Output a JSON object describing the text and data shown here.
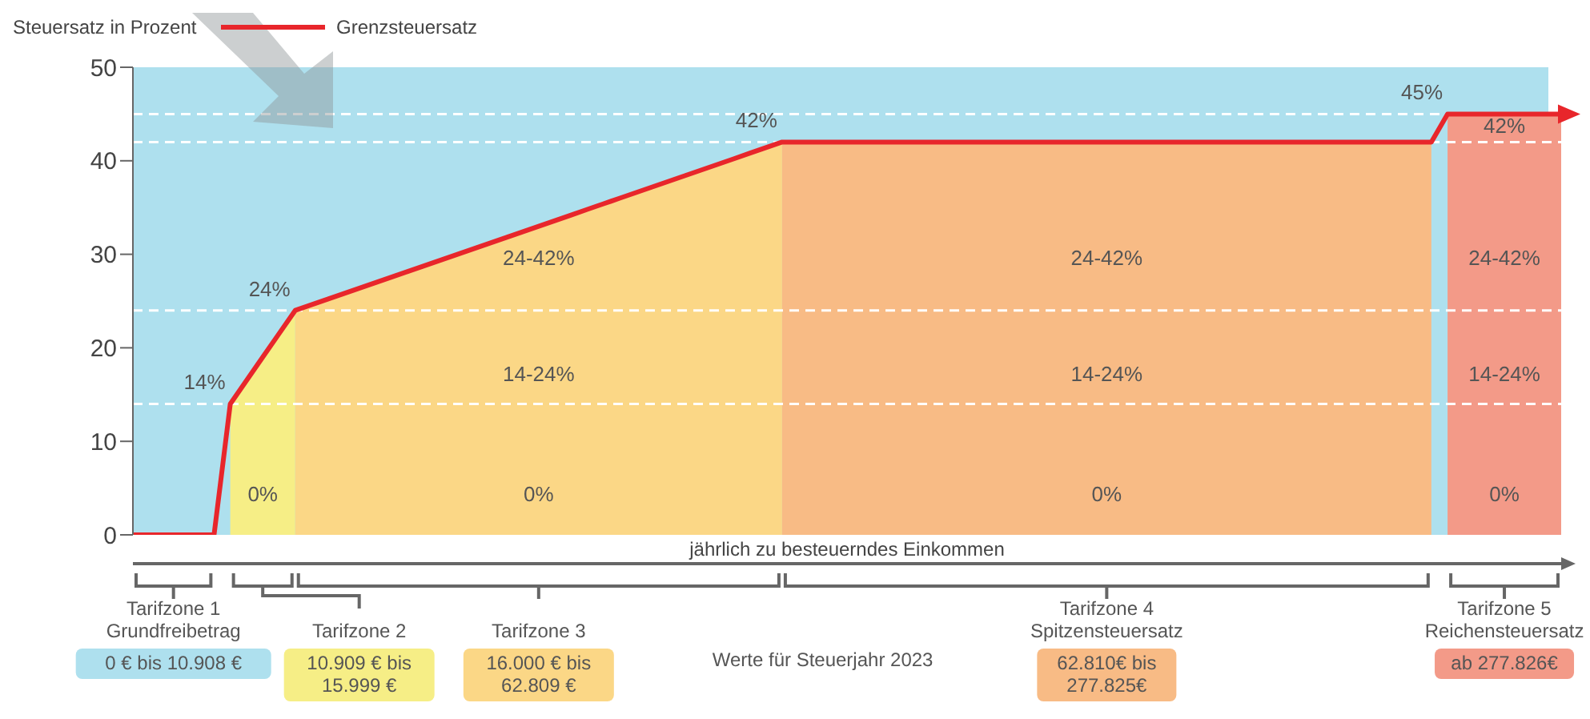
{
  "chart_data": {
    "type": "line",
    "ylabel": "Steuersatz in Prozent",
    "xlabel": "jährlich zu besteuerndes Einkommen",
    "legend": "top",
    "ylim": [
      0,
      50
    ],
    "yticks": [
      0,
      10,
      20,
      30,
      40,
      50
    ],
    "tick_labels": "y",
    "categories": [
      null,
      null,
      null,
      null,
      null,
      null,
      null,
      null,
      null,
      null,
      null,
      null,
      null,
      null,
      null,
      null,
      null,
      null,
      null,
      null,
      null,
      null,
      null,
      null,
      null,
      null,
      null,
      null,
      null,
      null,
      null,
      null,
      null,
      null,
      null,
      null,
      null,
      null,
      null,
      null,
      null,
      null,
      null,
      null,
      null,
      null,
      null,
      null,
      null,
      null,
      null,
      null,
      null,
      null,
      null,
      null,
      null,
      null,
      null,
      null,
      null,
      null,
      null,
      null,
      null,
      null,
      null,
      null,
      null,
      null,
      null,
      null,
      null,
      null,
      null,
      null,
      null,
      null,
      null,
      null,
      null,
      null,
      null,
      null,
      null,
      null,
      null,
      null,
      null
    ],
    "series": [
      {
        "type": "area",
        "color": "#f6ee86",
        "values": [
          null,
          null,
          null,
          null,
          null,
          null,
          14,
          16.5,
          19,
          21.5,
          24,
          null,
          null,
          null,
          null,
          null,
          null,
          null,
          null,
          null,
          null,
          null,
          null,
          null,
          null,
          null,
          null,
          null,
          null,
          null,
          null,
          null,
          null,
          null,
          null,
          null,
          null,
          null,
          null,
          null,
          null,
          null,
          null,
          null,
          null,
          null,
          null,
          null,
          null,
          null,
          null,
          null,
          null,
          null,
          null,
          null,
          null,
          null,
          null,
          null,
          null,
          null,
          null,
          null,
          null,
          null,
          null,
          null,
          null,
          null,
          null,
          null,
          null,
          null,
          null,
          null,
          null,
          null,
          null,
          null,
          null,
          null,
          null,
          null,
          null,
          null,
          null,
          null,
          null
        ]
      },
      {
        "type": "area",
        "color": "#fbd786",
        "values": [
          null,
          null,
          null,
          null,
          null,
          null,
          null,
          null,
          null,
          null,
          24,
          24.6,
          25.2,
          25.8,
          26.4,
          27,
          27.6,
          28.2,
          28.8,
          29.4,
          30,
          30.6,
          31.2,
          31.8,
          32.4,
          33,
          33.6,
          34.2,
          34.8,
          35.4,
          36,
          36.6,
          37.2,
          37.8,
          38.4,
          39,
          39.6,
          40.2,
          40.8,
          41.4,
          42,
          null,
          null,
          null,
          null,
          null,
          null,
          null,
          null,
          null,
          null,
          null,
          null,
          null,
          null,
          null,
          null,
          null,
          null,
          null,
          null,
          null,
          null,
          null,
          null,
          null,
          null,
          null,
          null,
          null,
          null,
          null,
          null,
          null,
          null,
          null,
          null,
          null,
          null,
          null,
          null,
          null,
          null,
          null,
          null,
          null,
          null,
          null,
          null
        ]
      },
      {
        "type": "area",
        "color": "#f8bb85",
        "values": [
          null,
          null,
          null,
          null,
          null,
          null,
          null,
          null,
          null,
          null,
          null,
          null,
          null,
          null,
          null,
          null,
          null,
          null,
          null,
          null,
          null,
          null,
          null,
          null,
          null,
          null,
          null,
          null,
          null,
          null,
          null,
          null,
          null,
          null,
          null,
          null,
          null,
          null,
          null,
          null,
          42,
          42,
          42,
          42,
          42,
          42,
          42,
          42,
          42,
          42,
          42,
          42,
          42,
          42,
          42,
          42,
          42,
          42,
          42,
          42,
          42,
          42,
          42,
          42,
          42,
          42,
          42,
          42,
          42,
          42,
          42,
          42,
          42,
          42,
          42,
          42,
          42,
          42,
          42,
          42,
          42,
          null,
          null,
          null,
          null,
          null,
          null,
          null,
          null
        ]
      },
      {
        "type": "area",
        "color": "#f39a88",
        "values": [
          null,
          null,
          null,
          null,
          null,
          null,
          null,
          null,
          null,
          null,
          null,
          null,
          null,
          null,
          null,
          null,
          null,
          null,
          null,
          null,
          null,
          null,
          null,
          null,
          null,
          null,
          null,
          null,
          null,
          null,
          null,
          null,
          null,
          null,
          null,
          null,
          null,
          null,
          null,
          null,
          null,
          null,
          null,
          null,
          null,
          null,
          null,
          null,
          null,
          null,
          null,
          null,
          null,
          null,
          null,
          null,
          null,
          null,
          null,
          null,
          null,
          null,
          null,
          null,
          null,
          null,
          null,
          null,
          null,
          null,
          null,
          null,
          null,
          null,
          null,
          null,
          null,
          null,
          null,
          null,
          null,
          45,
          45,
          45,
          45,
          45,
          45,
          45,
          45
        ]
      },
      {
        "name": "Grenzsteuersatz",
        "color": "#e8262b",
        "values": [
          0,
          0,
          0,
          0,
          0,
          0,
          14,
          16.5,
          19,
          21.5,
          24,
          24.6,
          25.2,
          25.8,
          26.4,
          27,
          27.6,
          28.2,
          28.8,
          29.4,
          30,
          30.6,
          31.2,
          31.8,
          32.4,
          33,
          33.6,
          34.2,
          34.8,
          35.4,
          36,
          36.6,
          37.2,
          37.8,
          38.4,
          39,
          39.6,
          40.2,
          40.8,
          41.4,
          42,
          42,
          42,
          42,
          42,
          42,
          42,
          42,
          42,
          42,
          42,
          42,
          42,
          42,
          42,
          42,
          42,
          42,
          42,
          42,
          42,
          42,
          42,
          42,
          42,
          42,
          42,
          42,
          42,
          42,
          42,
          42,
          42,
          42,
          42,
          42,
          42,
          42,
          42,
          42,
          42,
          45,
          45,
          45,
          45,
          45,
          45,
          45,
          45
        ],
        "value_labels": [
          null,
          null,
          null,
          null,
          null,
          null,
          "14%",
          null,
          null,
          null,
          "24%",
          null,
          null,
          null,
          null,
          null,
          null,
          null,
          null,
          null,
          null,
          null,
          null,
          null,
          null,
          null,
          null,
          null,
          null,
          null,
          null,
          null,
          null,
          null,
          null,
          null,
          null,
          null,
          null,
          null,
          "42%",
          null,
          null,
          null,
          null,
          null,
          null,
          null,
          null,
          null,
          null,
          null,
          null,
          null,
          null,
          null,
          null,
          null,
          null,
          null,
          null,
          null,
          null,
          null,
          null,
          null,
          null,
          null,
          null,
          null,
          null,
          null,
          null,
          null,
          null,
          null,
          null,
          null,
          null,
          null,
          null,
          "45%",
          null,
          null,
          null,
          null,
          null,
          null,
          null
        ]
      }
    ],
    "ref_lines": [
      {
        "axis": "y",
        "value": 14,
        "color": "#ffffff",
        "line_style": "dashed"
      },
      {
        "axis": "y",
        "value": 24,
        "color": "#ffffff",
        "line_style": "dashed"
      },
      {
        "axis": "y",
        "value": 42,
        "color": "#ffffff",
        "line_style": "dashed"
      },
      {
        "axis": "y",
        "value": 45,
        "color": "#ffffff",
        "line_style": "dashed"
      }
    ],
    "annotations": [
      "Tarifzone 1\nGrundfreibetrag",
      "0 € bis 10.908 €",
      "Tarifzone 2",
      "10.909 € bis\n15.999 €",
      "Tarifzone 3",
      "16.000 € bis\n62.809 €",
      "Tarifzone 4\nSpitzensteuersatz",
      "62.810€ bis\n277.825€",
      "Tarifzone 5\nReichensteuersatz",
      "ab 277.826€",
      "Werte für Steuerjahr 2023",
      "0%",
      "0%",
      "0%",
      "0%",
      "14-24%",
      "14-24%",
      "14-24%",
      "24-42%",
      "24-42%",
      "24-42%",
      "42%"
    ]
  }
}
